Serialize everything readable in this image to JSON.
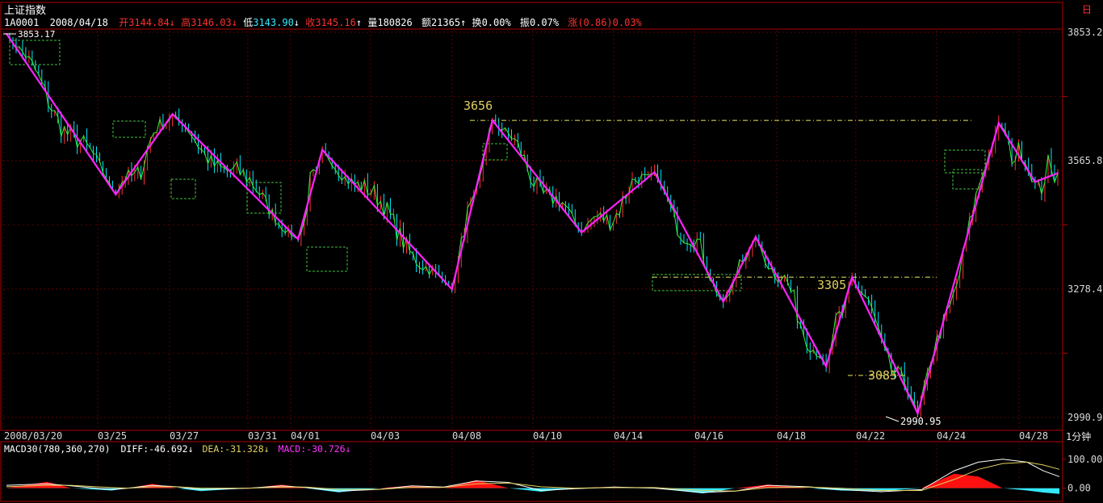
{
  "header": {
    "index_name": "上证指数",
    "code": "1A0001",
    "date": "2008/04/18",
    "open_label": "开",
    "open": "3144.84",
    "open_arrow": "↓",
    "high_label": "高",
    "high": "3146.03",
    "high_arrow": "↓",
    "low_label": "低",
    "low": "3143.90",
    "low_arrow": "↓",
    "close_label": "收",
    "close": "3145.16",
    "close_arrow": "↑",
    "volume_label": "量",
    "volume": "180826",
    "volume_arrow": "",
    "amount_label": "额",
    "amount": "21365",
    "amount_arrow": "↑",
    "turnover_label": "换",
    "turnover": "0.00%",
    "amplitude_label": "振",
    "amplitude": "0.07%",
    "change_label": "涨",
    "change": "(0.86)0.03%"
  },
  "top_right_label": "日",
  "period_label": "1分钟",
  "annotations": {
    "max_value": "3853.17",
    "min_value": "2990.95",
    "peak_1": "3656",
    "peak_2": "3305",
    "trough": "3085"
  },
  "macd_header": {
    "name": "MACD30(780,360,270)",
    "diff_label": "DIFF:",
    "diff": "-46.692",
    "diff_arrow": "↓",
    "dea_label": "DEA:",
    "dea": "-31.328",
    "dea_arrow": "↓",
    "macd_label": "MACD:",
    "macd": "-30.726",
    "macd_arrow": "↓"
  },
  "colors": {
    "background": "#000000",
    "frame": "#b00000",
    "price_up": "#ff3030",
    "price_down": "#00e8ff",
    "price_line": "#33ee33",
    "zigzag": "#ff22ff",
    "level_line": "#e8e860",
    "box": "#40c040",
    "label_yellow": "#e0d060",
    "macd_pos": "#ff1010",
    "macd_neg": "#33e8ff",
    "diff_line": "#ffffff",
    "dea_line": "#e0d060",
    "axis_text": "#d8d8d8"
  },
  "chart_data": [
    {
      "type": "line",
      "title": "上证指数 1分钟",
      "y_ticks": [
        3853.2,
        3565.8,
        3278.4,
        2990.9
      ],
      "ylim": [
        2990.9,
        3853.2
      ],
      "x_ticks": [
        "2008/03/20",
        "03/25",
        "03/27",
        "03/31",
        "04/01",
        "04/03",
        "04/08",
        "04/10",
        "04/14",
        "04/16",
        "04/18",
        "04/22",
        "04/24",
        "04/28"
      ],
      "zigzag_pivots": [
        {
          "x": 0.0,
          "y": 3850
        },
        {
          "x": 1.35,
          "y": 3490
        },
        {
          "x": 2.05,
          "y": 3670
        },
        {
          "x": 3.6,
          "y": 3390
        },
        {
          "x": 3.9,
          "y": 3590
        },
        {
          "x": 5.5,
          "y": 3278
        },
        {
          "x": 6.0,
          "y": 3656
        },
        {
          "x": 7.1,
          "y": 3405
        },
        {
          "x": 8.0,
          "y": 3540
        },
        {
          "x": 8.85,
          "y": 3250
        },
        {
          "x": 9.25,
          "y": 3395
        },
        {
          "x": 10.12,
          "y": 3105
        },
        {
          "x": 10.44,
          "y": 3305
        },
        {
          "x": 11.25,
          "y": 3000
        },
        {
          "x": 12.25,
          "y": 3650
        },
        {
          "x": 12.7,
          "y": 3518
        },
        {
          "x": 12.98,
          "y": 3538
        }
      ],
      "level_lines": [
        3656,
        3305,
        3085
      ],
      "series": [
        {
          "name": "price",
          "values": "approximate intraday path following zigzag pivots"
        }
      ]
    },
    {
      "type": "area",
      "title": "MACD30(780,360,270)",
      "y_ticks": [
        100.0,
        0.0
      ],
      "ylim": [
        -40,
        130
      ],
      "x": [
        0,
        0.5,
        0.8,
        1.3,
        1.5,
        1.8,
        2.1,
        2.4,
        3.0,
        3.4,
        3.7,
        4.1,
        4.6,
        5.0,
        5.4,
        5.8,
        6.2,
        6.6,
        7.0,
        7.5,
        8.0,
        8.6,
        9.0,
        9.4,
        9.9,
        10.3,
        10.8,
        11.3,
        11.7,
        12.0,
        12.3,
        12.6,
        12.8,
        13.0
      ],
      "macd_hist": [
        0,
        22,
        0,
        -8,
        0,
        15,
        0,
        -10,
        0,
        12,
        0,
        -14,
        0,
        9,
        0,
        28,
        0,
        -12,
        0,
        5,
        0,
        -18,
        0,
        12,
        0,
        -8,
        -10,
        0,
        50,
        40,
        0,
        -8,
        -15,
        -20
      ],
      "diff": [
        10,
        15,
        8,
        -5,
        0,
        10,
        5,
        -5,
        0,
        8,
        2,
        -10,
        -4,
        8,
        4,
        25,
        20,
        -8,
        -2,
        4,
        0,
        -15,
        -10,
        10,
        5,
        -5,
        -12,
        -5,
        60,
        90,
        100,
        90,
        60,
        40
      ],
      "dea": [
        5,
        10,
        10,
        2,
        0,
        5,
        5,
        0,
        0,
        4,
        4,
        -4,
        -4,
        3,
        3,
        15,
        18,
        5,
        0,
        2,
        2,
        -8,
        -10,
        2,
        4,
        0,
        -8,
        -8,
        30,
        65,
        85,
        90,
        80,
        65
      ],
      "series": [
        {
          "name": "DIFF",
          "values_key": "diff"
        },
        {
          "name": "DEA",
          "values_key": "dea"
        },
        {
          "name": "MACD",
          "values_key": "macd_hist"
        }
      ]
    }
  ]
}
